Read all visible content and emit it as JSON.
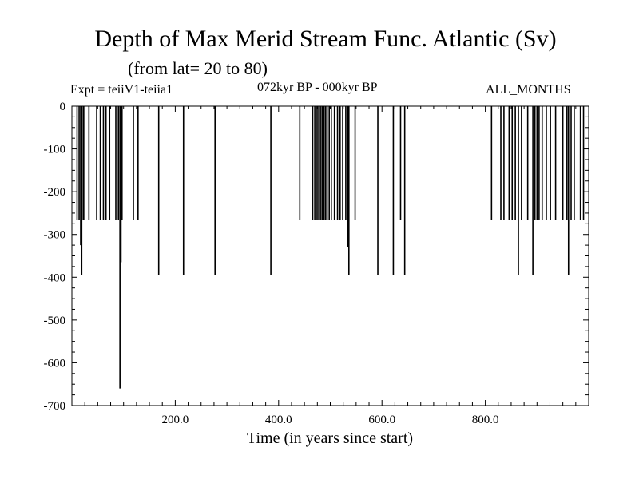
{
  "header": {
    "title": "Depth of Max Merid Stream Func. Atlantic (Sv)",
    "subtitle": "(from lat= 20 to 80)",
    "expt": "Expt = teiiV1-teiia1",
    "period": "072kyr BP - 000kyr BP",
    "months": "ALL_MONTHS"
  },
  "chart_data": {
    "type": "line",
    "xlabel": "Time (in years since start)",
    "ylabel": "",
    "xlim": [
      0,
      1000
    ],
    "ylim": [
      -700,
      0
    ],
    "x_ticks": [
      200,
      400,
      600,
      800
    ],
    "x_tick_labels": [
      "200.0",
      "400.0",
      "600.0",
      "800.0"
    ],
    "y_ticks": [
      0,
      -100,
      -200,
      -300,
      -400,
      -500,
      -600,
      -700
    ],
    "y_tick_labels": [
      "0",
      "-100",
      "-200",
      "-300",
      "-400",
      "-500",
      "-600",
      "-700"
    ],
    "grid": false,
    "series": [
      {
        "spikes": [
          {
            "x": 10,
            "y": -265
          },
          {
            "x": 14,
            "y": -265
          },
          {
            "x": 17,
            "y": -325
          },
          {
            "x": 19,
            "y": -395
          },
          {
            "x": 22,
            "y": -265
          },
          {
            "x": 25,
            "y": -265
          },
          {
            "x": 33,
            "y": -265
          },
          {
            "x": 48,
            "y": -265
          },
          {
            "x": 55,
            "y": -265
          },
          {
            "x": 61,
            "y": -265
          },
          {
            "x": 66,
            "y": -265
          },
          {
            "x": 73,
            "y": -265
          },
          {
            "x": 85,
            "y": -265
          },
          {
            "x": 90,
            "y": -265
          },
          {
            "x": 93,
            "y": -660
          },
          {
            "x": 95,
            "y": -365
          },
          {
            "x": 97,
            "y": -265
          },
          {
            "x": 119,
            "y": -265
          },
          {
            "x": 128,
            "y": -265
          },
          {
            "x": 168,
            "y": -395
          },
          {
            "x": 216,
            "y": -395
          },
          {
            "x": 277,
            "y": -395
          },
          {
            "x": 385,
            "y": -395
          },
          {
            "x": 441,
            "y": -265
          },
          {
            "x": 466,
            "y": -265
          },
          {
            "x": 470,
            "y": -265
          },
          {
            "x": 473,
            "y": -265
          },
          {
            "x": 476,
            "y": -265
          },
          {
            "x": 479,
            "y": -265
          },
          {
            "x": 482,
            "y": -265
          },
          {
            "x": 485,
            "y": -265
          },
          {
            "x": 488,
            "y": -265
          },
          {
            "x": 491,
            "y": -265
          },
          {
            "x": 494,
            "y": -265
          },
          {
            "x": 498,
            "y": -265
          },
          {
            "x": 502,
            "y": -265
          },
          {
            "x": 508,
            "y": -265
          },
          {
            "x": 514,
            "y": -265
          },
          {
            "x": 519,
            "y": -265
          },
          {
            "x": 524,
            "y": -265
          },
          {
            "x": 530,
            "y": -265
          },
          {
            "x": 534,
            "y": -330
          },
          {
            "x": 536,
            "y": -395
          },
          {
            "x": 548,
            "y": -265
          },
          {
            "x": 592,
            "y": -395
          },
          {
            "x": 622,
            "y": -395
          },
          {
            "x": 636,
            "y": -265
          },
          {
            "x": 644,
            "y": -395
          },
          {
            "x": 812,
            "y": -265
          },
          {
            "x": 830,
            "y": -265
          },
          {
            "x": 836,
            "y": -265
          },
          {
            "x": 846,
            "y": -265
          },
          {
            "x": 852,
            "y": -265
          },
          {
            "x": 858,
            "y": -265
          },
          {
            "x": 864,
            "y": -395
          },
          {
            "x": 870,
            "y": -265
          },
          {
            "x": 882,
            "y": -265
          },
          {
            "x": 892,
            "y": -395
          },
          {
            "x": 896,
            "y": -265
          },
          {
            "x": 900,
            "y": -265
          },
          {
            "x": 904,
            "y": -265
          },
          {
            "x": 910,
            "y": -265
          },
          {
            "x": 918,
            "y": -265
          },
          {
            "x": 926,
            "y": -265
          },
          {
            "x": 936,
            "y": -265
          },
          {
            "x": 950,
            "y": -265
          },
          {
            "x": 958,
            "y": -265
          },
          {
            "x": 961,
            "y": -395
          },
          {
            "x": 966,
            "y": -265
          },
          {
            "x": 972,
            "y": -265
          },
          {
            "x": 984,
            "y": -265
          },
          {
            "x": 990,
            "y": -265
          }
        ]
      }
    ]
  }
}
